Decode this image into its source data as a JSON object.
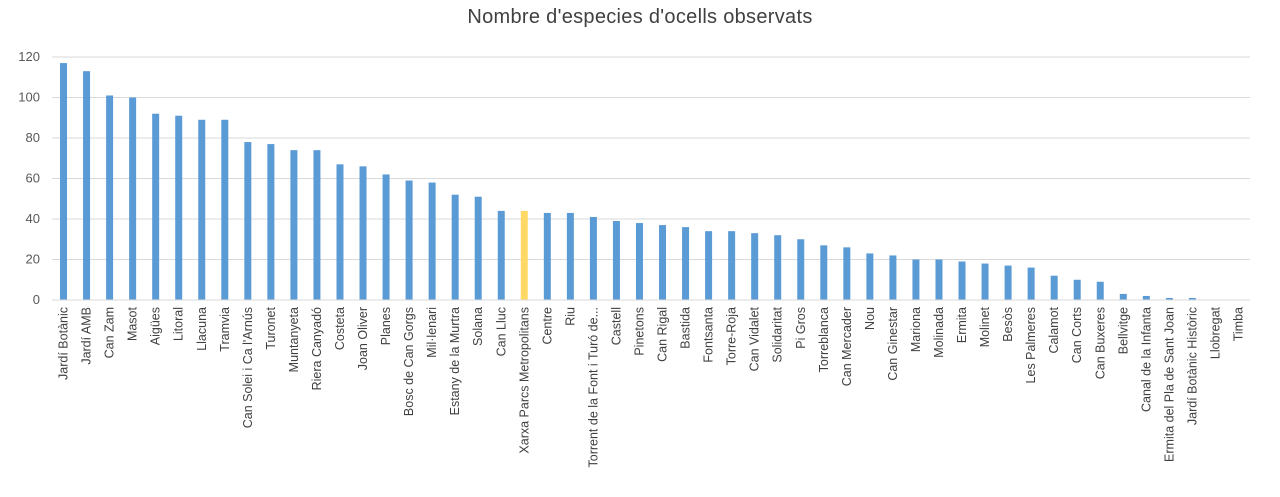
{
  "chart_data": {
    "type": "bar",
    "title": "Nombre d'especies d'ocells observats",
    "xlabel": "",
    "ylabel": "",
    "ylim": [
      0,
      120
    ],
    "yticks": [
      0,
      20,
      40,
      60,
      80,
      100,
      120
    ],
    "grid": true,
    "legend": "none",
    "colors": {
      "default": "#5b9bd5",
      "highlight": "#ffd966",
      "grid": "#d9d9d9"
    },
    "highlight_category": "Xarxa Parcs Metropolitans",
    "categories": [
      "Jardí Botànic",
      "Jardí AMB",
      "Can Zam",
      "Masot",
      "Aigües",
      "Litoral",
      "Llacuna",
      "Tramvia",
      "Can Solei i Ca l'Arnús",
      "Turonet",
      "Muntanyeta",
      "Riera Canyadó",
      "Costeta",
      "Joan Oliver",
      "Planes",
      "Bosc de Can Gorgs",
      "Mil·lenari",
      "Estany de la Murtra",
      "Solana",
      "Can Lluc",
      "Xarxa Parcs Metropolitans",
      "Centre",
      "Riu",
      "Torrent de la Font i Turó de...",
      "Castell",
      "Pinetons",
      "Can Rigal",
      "Bastida",
      "Fontsanta",
      "Torre-Roja",
      "Can Vidalet",
      "Solidaritat",
      "Pi Gros",
      "Torreblanca",
      "Can Mercader",
      "Nou",
      "Can Ginestar",
      "Mariona",
      "Molinada",
      "Ermita",
      "Molinet",
      "Besòs",
      "Les Palmeres",
      "Calamot",
      "Can Corts",
      "Can Buxeres",
      "Bellvitge",
      "Canal de la Infanta",
      "Ermita del Pla de Sant Joan",
      "Jardí Botànic Històric",
      "Llobregat",
      "Timba"
    ],
    "values": [
      117,
      113,
      101,
      100,
      92,
      91,
      89,
      89,
      78,
      77,
      74,
      74,
      67,
      66,
      62,
      59,
      58,
      52,
      51,
      44,
      44,
      43,
      43,
      41,
      39,
      38,
      37,
      36,
      34,
      34,
      33,
      32,
      30,
      27,
      26,
      23,
      22,
      20,
      20,
      19,
      18,
      17,
      16,
      12,
      10,
      9,
      3,
      2,
      1,
      1,
      0,
      0
    ]
  }
}
